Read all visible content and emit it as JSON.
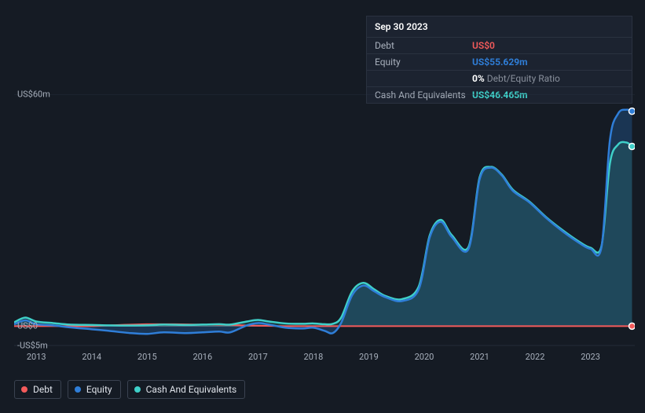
{
  "tooltip": {
    "date": "Sep 30 2023",
    "rows": {
      "debt": {
        "label": "Debt",
        "value": "US$0"
      },
      "equity": {
        "label": "Equity",
        "value": "US$55.629m"
      },
      "ratio": {
        "pct": "0%",
        "label": "Debt/Equity Ratio"
      },
      "cash": {
        "label": "Cash And Equivalents",
        "value": "US$46.465m"
      }
    }
  },
  "chart": {
    "type": "area-line",
    "background": "#151b24",
    "grid_color": "#2a3240",
    "y_axis": {
      "min": -5,
      "max": 60,
      "ticks": [
        {
          "v": 60,
          "label": "US$60m"
        },
        {
          "v": 0,
          "label": "US$0"
        },
        {
          "v": -5,
          "label": "-US$5m"
        }
      ],
      "label_fontsize": 11,
      "label_color": "#a8b0bc"
    },
    "x_axis": {
      "min": 2012.6,
      "max": 2023.8,
      "ticks": [
        2013,
        2014,
        2015,
        2016,
        2017,
        2018,
        2019,
        2020,
        2021,
        2022,
        2023
      ],
      "label_fontsize": 11,
      "label_color": "#a8b0bc"
    },
    "zero_line_color": "#ffffff",
    "series": [
      {
        "id": "debt",
        "name": "Debt",
        "color": "#f45b5b",
        "line_width": 2,
        "fill_opacity": 0,
        "points": [
          [
            2012.6,
            0
          ],
          [
            2013,
            0
          ],
          [
            2013.5,
            0
          ],
          [
            2014,
            0
          ],
          [
            2014.5,
            0.3
          ],
          [
            2015,
            0.5
          ],
          [
            2015.5,
            0.5
          ],
          [
            2016,
            0.4
          ],
          [
            2016.5,
            0.3
          ],
          [
            2017,
            0.1
          ],
          [
            2017.5,
            0
          ],
          [
            2018,
            0
          ],
          [
            2019,
            0
          ],
          [
            2020,
            0
          ],
          [
            2021,
            0
          ],
          [
            2022,
            0
          ],
          [
            2023,
            0
          ],
          [
            2023.75,
            0
          ]
        ]
      },
      {
        "id": "equity",
        "name": "Equity",
        "color": "#2f7ed8",
        "line_width": 2.5,
        "fill_opacity": 0.55,
        "fill_color": "#1f4a7a",
        "points": [
          [
            2012.6,
            0.5
          ],
          [
            2012.8,
            1.5
          ],
          [
            2013,
            0.5
          ],
          [
            2013.3,
            0.2
          ],
          [
            2013.6,
            -0.3
          ],
          [
            2014,
            -0.8
          ],
          [
            2014.3,
            -1.2
          ],
          [
            2014.7,
            -1.8
          ],
          [
            2015,
            -2.0
          ],
          [
            2015.3,
            -1.6
          ],
          [
            2015.7,
            -1.8
          ],
          [
            2016,
            -1.6
          ],
          [
            2016.3,
            -1.4
          ],
          [
            2016.5,
            -1.6
          ],
          [
            2016.8,
            0.2
          ],
          [
            2017,
            0.8
          ],
          [
            2017.2,
            0.4
          ],
          [
            2017.5,
            -0.4
          ],
          [
            2017.8,
            -0.6
          ],
          [
            2018,
            -0.4
          ],
          [
            2018.2,
            -1.2
          ],
          [
            2018.35,
            -1.8
          ],
          [
            2018.5,
            0.8
          ],
          [
            2018.7,
            8
          ],
          [
            2018.9,
            10.5
          ],
          [
            2019.1,
            9
          ],
          [
            2019.3,
            7.5
          ],
          [
            2019.6,
            6.5
          ],
          [
            2019.9,
            9.5
          ],
          [
            2020.1,
            23
          ],
          [
            2020.3,
            27
          ],
          [
            2020.5,
            23
          ],
          [
            2020.8,
            20
          ],
          [
            2021,
            38
          ],
          [
            2021.2,
            41
          ],
          [
            2021.4,
            39
          ],
          [
            2021.6,
            35
          ],
          [
            2021.9,
            32
          ],
          [
            2022.2,
            28
          ],
          [
            2022.5,
            24.5
          ],
          [
            2022.8,
            21.5
          ],
          [
            2023.0,
            20
          ],
          [
            2023.2,
            20.5
          ],
          [
            2023.35,
            48
          ],
          [
            2023.5,
            55
          ],
          [
            2023.65,
            56
          ],
          [
            2023.75,
            55.6
          ]
        ]
      },
      {
        "id": "cash",
        "name": "Cash And Equivalents",
        "color": "#3fd0c9",
        "line_width": 2.5,
        "fill_opacity": 0.35,
        "fill_color": "#2a6e6a",
        "points": [
          [
            2012.6,
            1.0
          ],
          [
            2012.8,
            2.2
          ],
          [
            2013,
            1.2
          ],
          [
            2013.3,
            0.8
          ],
          [
            2013.6,
            0.4
          ],
          [
            2014,
            0.3
          ],
          [
            2014.3,
            0.2
          ],
          [
            2014.7,
            0.15
          ],
          [
            2015,
            0.2
          ],
          [
            2015.3,
            0.4
          ],
          [
            2015.7,
            0.3
          ],
          [
            2016,
            0.4
          ],
          [
            2016.3,
            0.5
          ],
          [
            2016.5,
            0.4
          ],
          [
            2016.8,
            1.2
          ],
          [
            2017,
            1.6
          ],
          [
            2017.2,
            1.2
          ],
          [
            2017.5,
            0.7
          ],
          [
            2017.8,
            0.6
          ],
          [
            2018,
            0.7
          ],
          [
            2018.2,
            0.5
          ],
          [
            2018.35,
            0.6
          ],
          [
            2018.5,
            2.2
          ],
          [
            2018.7,
            9
          ],
          [
            2018.9,
            11.2
          ],
          [
            2019.1,
            9.5
          ],
          [
            2019.3,
            7.8
          ],
          [
            2019.6,
            7.0
          ],
          [
            2019.9,
            10.2
          ],
          [
            2020.1,
            23.5
          ],
          [
            2020.3,
            27.5
          ],
          [
            2020.5,
            23.5
          ],
          [
            2020.8,
            20.5
          ],
          [
            2021,
            38.5
          ],
          [
            2021.2,
            41.2
          ],
          [
            2021.4,
            39.2
          ],
          [
            2021.6,
            35.3
          ],
          [
            2021.9,
            32.2
          ],
          [
            2022.2,
            28.2
          ],
          [
            2022.5,
            24.8
          ],
          [
            2022.8,
            21.8
          ],
          [
            2023.0,
            20.3
          ],
          [
            2023.2,
            20.8
          ],
          [
            2023.35,
            42
          ],
          [
            2023.5,
            47
          ],
          [
            2023.65,
            47.5
          ],
          [
            2023.75,
            46.5
          ]
        ]
      }
    ],
    "end_markers": [
      {
        "series": "debt",
        "x": 2023.75,
        "y": 0,
        "color": "#f45b5b"
      },
      {
        "series": "equity",
        "x": 2023.75,
        "y": 55.6,
        "color": "#2f7ed8"
      },
      {
        "series": "cash",
        "x": 2023.75,
        "y": 46.5,
        "color": "#3fd0c9"
      }
    ]
  },
  "legend": [
    {
      "id": "debt",
      "label": "Debt",
      "color": "#f45b5b"
    },
    {
      "id": "equity",
      "label": "Equity",
      "color": "#2f7ed8"
    },
    {
      "id": "cash",
      "label": "Cash And Equivalents",
      "color": "#3fd0c9"
    }
  ]
}
